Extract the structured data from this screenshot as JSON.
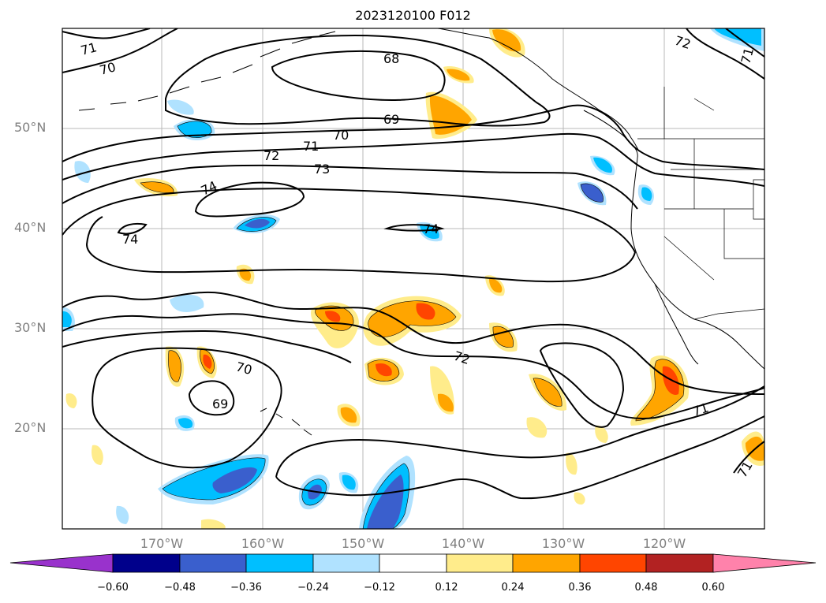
{
  "title": "2023120100 F012",
  "lat_labels": [
    "50°N",
    "40°N",
    "30°N",
    "20°N"
  ],
  "lon_labels": [
    "170°W",
    "160°W",
    "150°W",
    "140°W",
    "130°W",
    "120°W"
  ],
  "contour_labels": [
    "71",
    "70",
    "68",
    "69",
    "70",
    "71",
    "72",
    "73",
    "74",
    "74",
    "74",
    "72",
    "70",
    "69",
    "71",
    "71",
    "72",
    "71"
  ],
  "colorbar": {
    "colors": [
      "#9932CC",
      "#00008B",
      "#3A5FCD",
      "#00BFFF",
      "#B0E2FF",
      "#FFFFFF",
      "#FFEC8B",
      "#FFA500",
      "#FF4500",
      "#B22222",
      "#FF82AB"
    ],
    "ticks": [
      "−0.60",
      "−0.48",
      "−0.36",
      "−0.24",
      "−0.12",
      "0.12",
      "0.24",
      "0.36",
      "0.48",
      "0.60"
    ]
  }
}
